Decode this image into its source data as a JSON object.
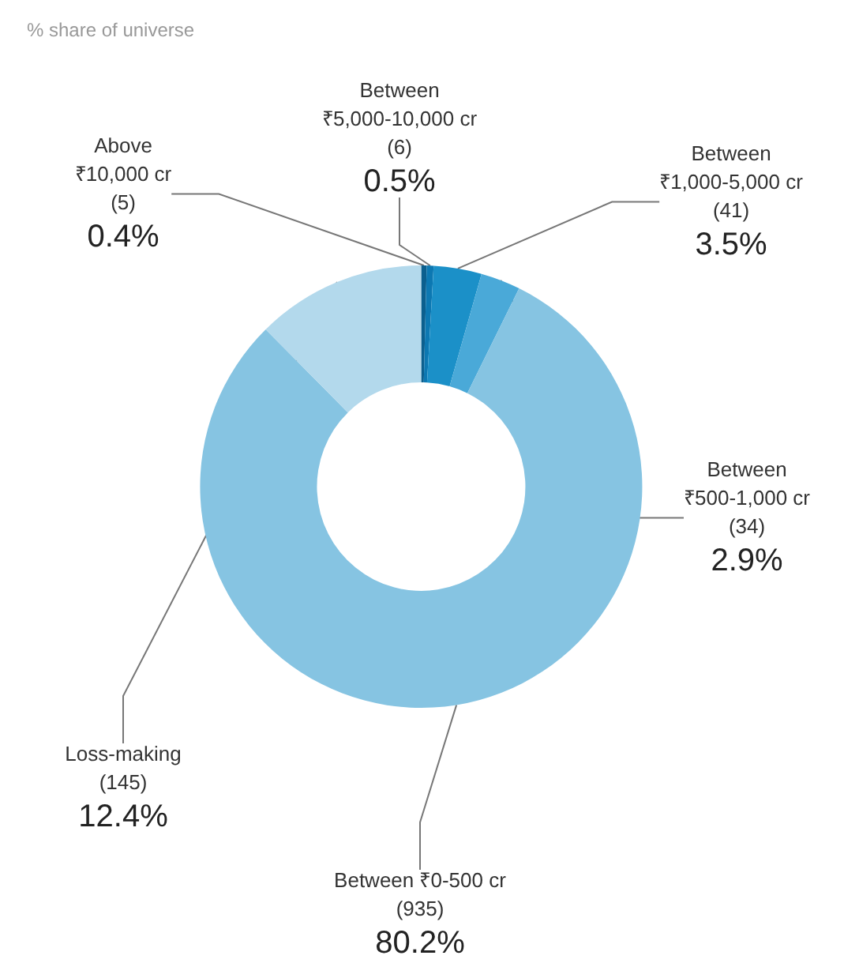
{
  "chart_data": {
    "type": "donut",
    "title": "% share of universe",
    "categories": [
      "Above\n₹10,000 cr\n(5)",
      "Between\n₹5,000-10,000 cr\n(6)",
      "Between\n₹1,000-5,000 cr\n(41)",
      "Between\n₹500-1,000 cr\n(34)",
      "Between ₹0-500 cr\n(935)",
      "Loss-making\n(145)"
    ],
    "values": [
      0.4,
      0.5,
      3.5,
      2.9,
      80.2,
      12.4
    ],
    "colors": [
      "#0b5f8e",
      "#0c78b2",
      "#1b90c8",
      "#4aa9d8",
      "#86c4e2",
      "#b3d9ec"
    ],
    "value_labels": [
      "0.4%",
      "0.5%",
      "3.5%",
      "2.9%",
      "80.2%",
      "12.4%"
    ],
    "legend": false
  }
}
